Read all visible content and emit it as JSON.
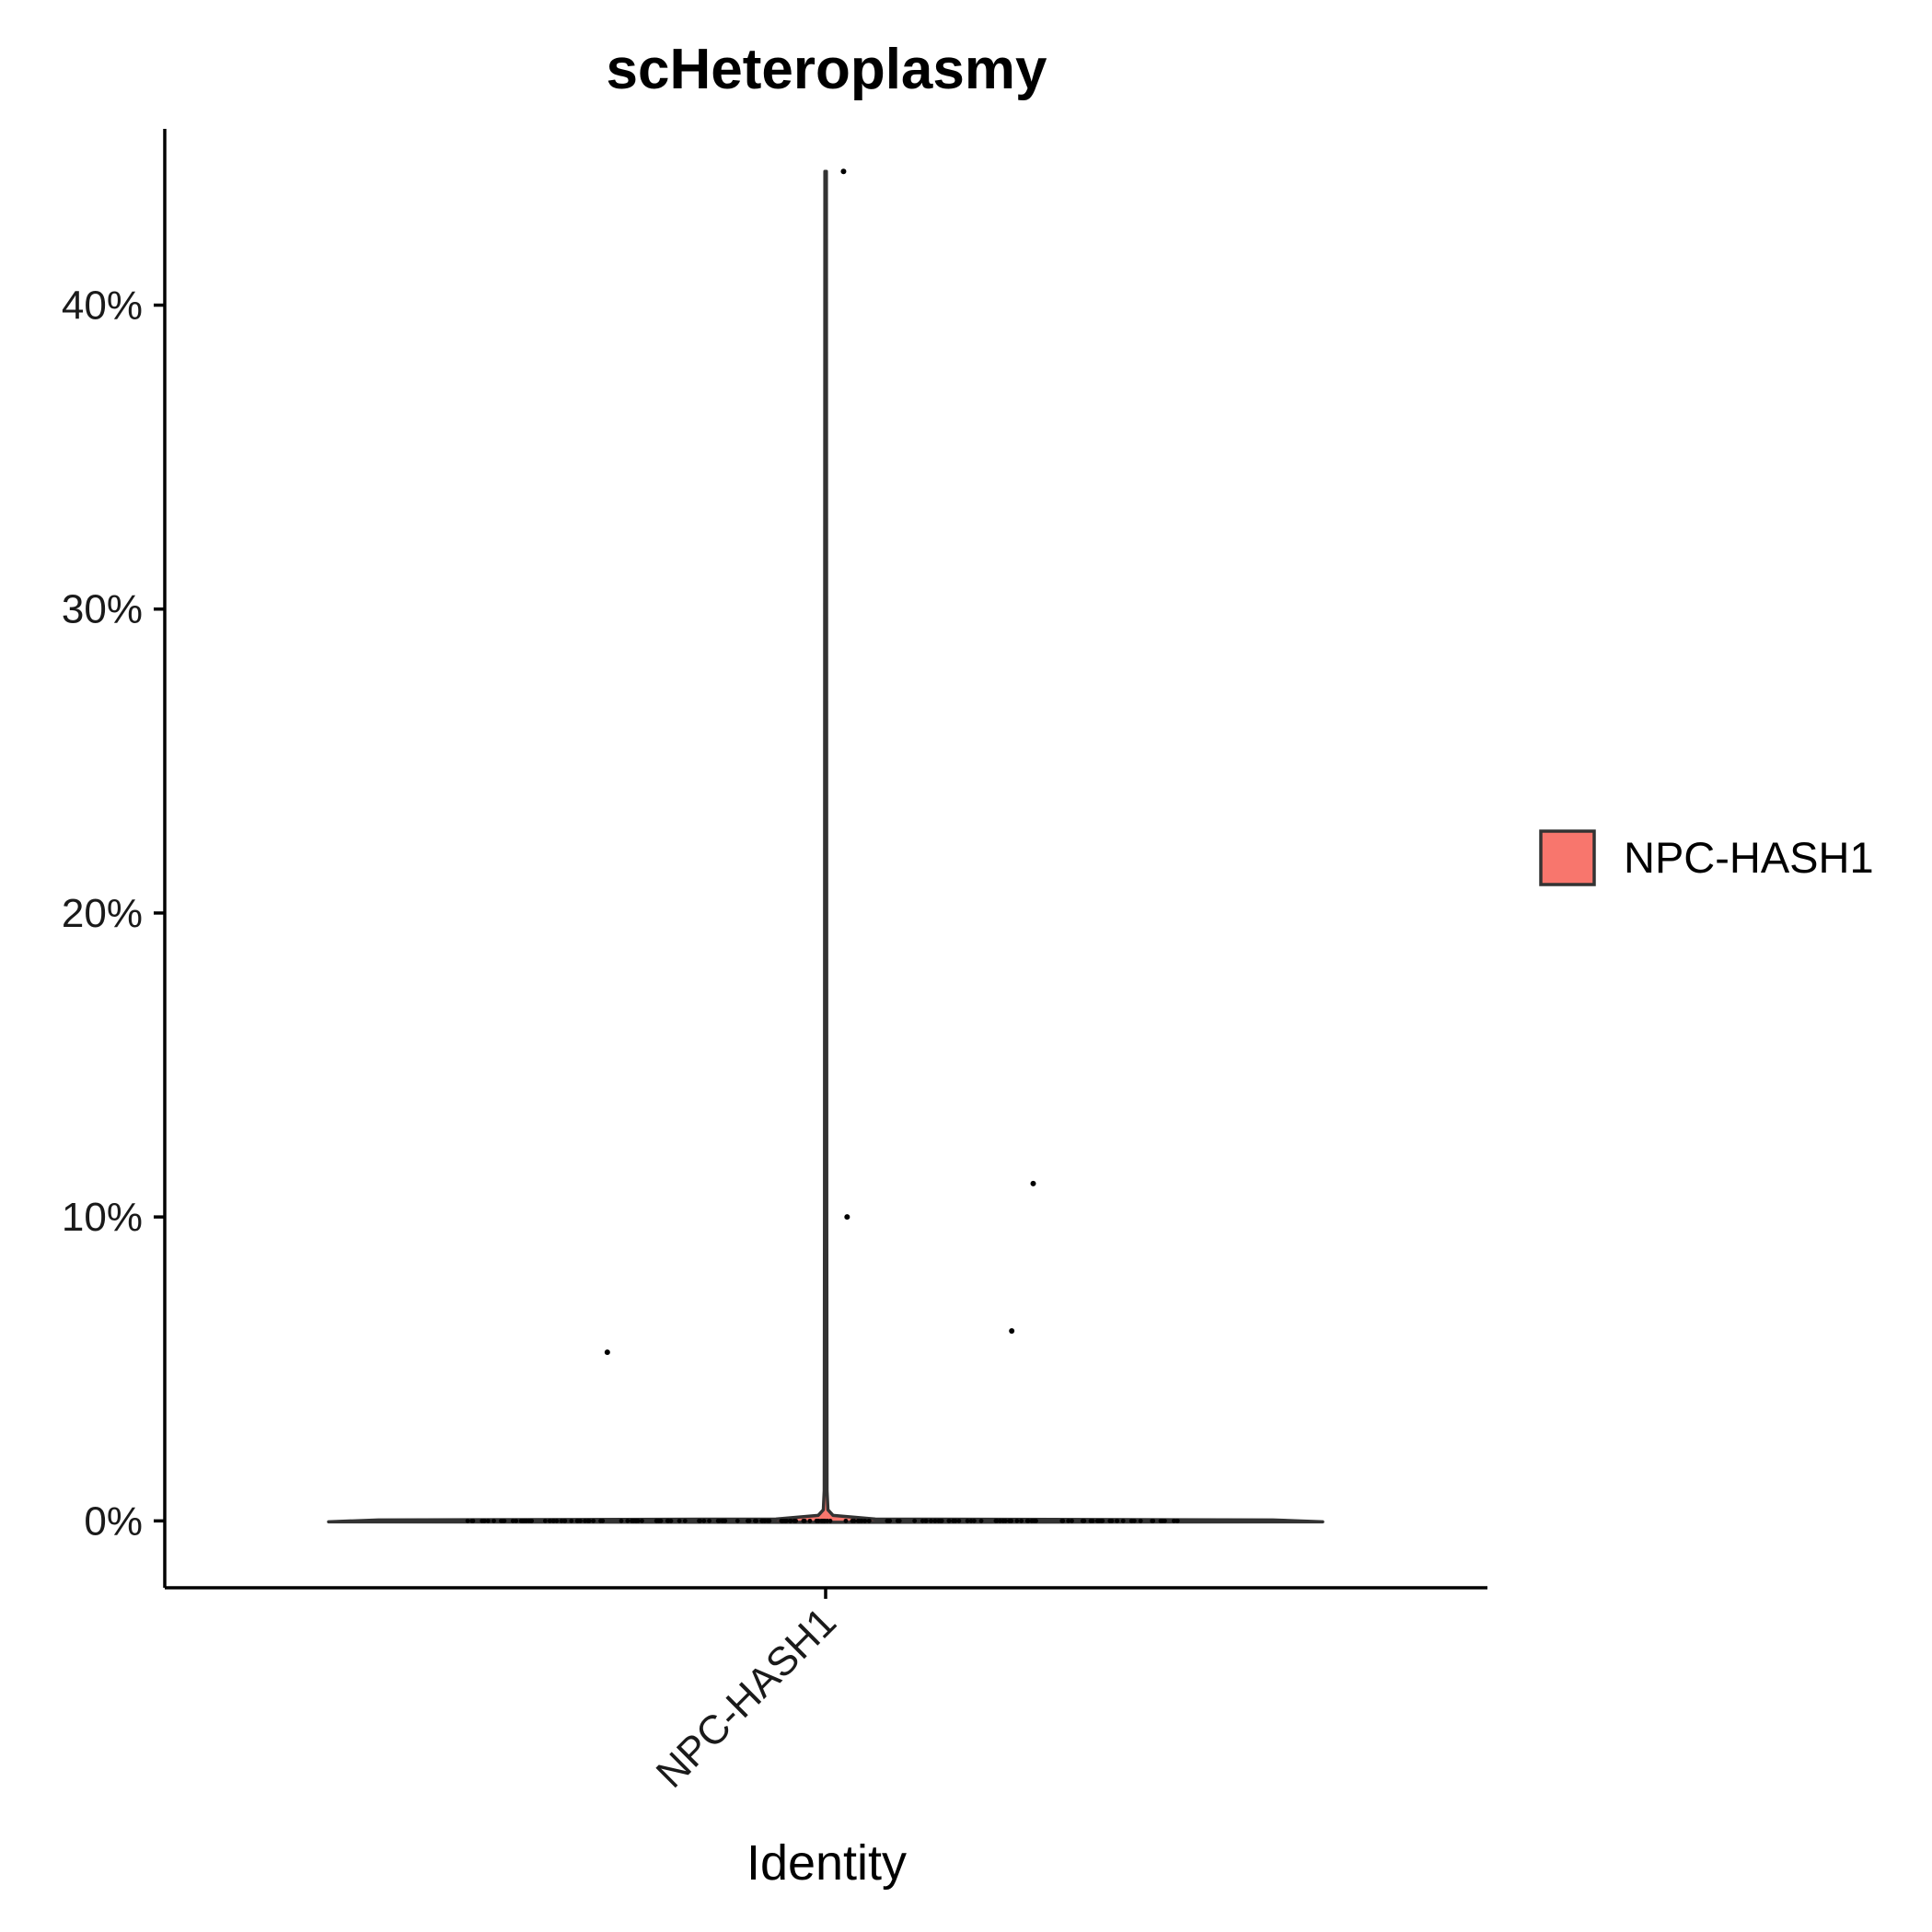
{
  "chart_data": {
    "type": "violin",
    "title": "scHeteroplasmy",
    "xlabel": "Identity",
    "ylabel": "",
    "categories": [
      "NPC-HASH1"
    ],
    "ylim": [
      -2.2,
      45.8
    ],
    "yticks": [
      0,
      10,
      20,
      30,
      40
    ],
    "ytick_labels": [
      "0%",
      "10%",
      "20%",
      "30%",
      "40%"
    ],
    "grid": false,
    "legend": {
      "position": "right",
      "entries": [
        {
          "label": "NPC-HASH1",
          "color": "#F8766D"
        }
      ]
    },
    "colors": {
      "fill": "#F8766D",
      "outline": "#333333",
      "points": "#000000"
    },
    "series": [
      {
        "category": "NPC-HASH1",
        "max": 44.4,
        "points_nonzero": [
          {
            "jitter": 0.05,
            "y": 44.4
          },
          {
            "jitter": 0.06,
            "y": 10.0
          },
          {
            "jitter": 0.58,
            "y": 11.1
          },
          {
            "jitter": 0.52,
            "y": 6.25
          },
          {
            "jitter": -0.61,
            "y": 5.55
          }
        ],
        "zero_count": 190
      }
    ]
  }
}
